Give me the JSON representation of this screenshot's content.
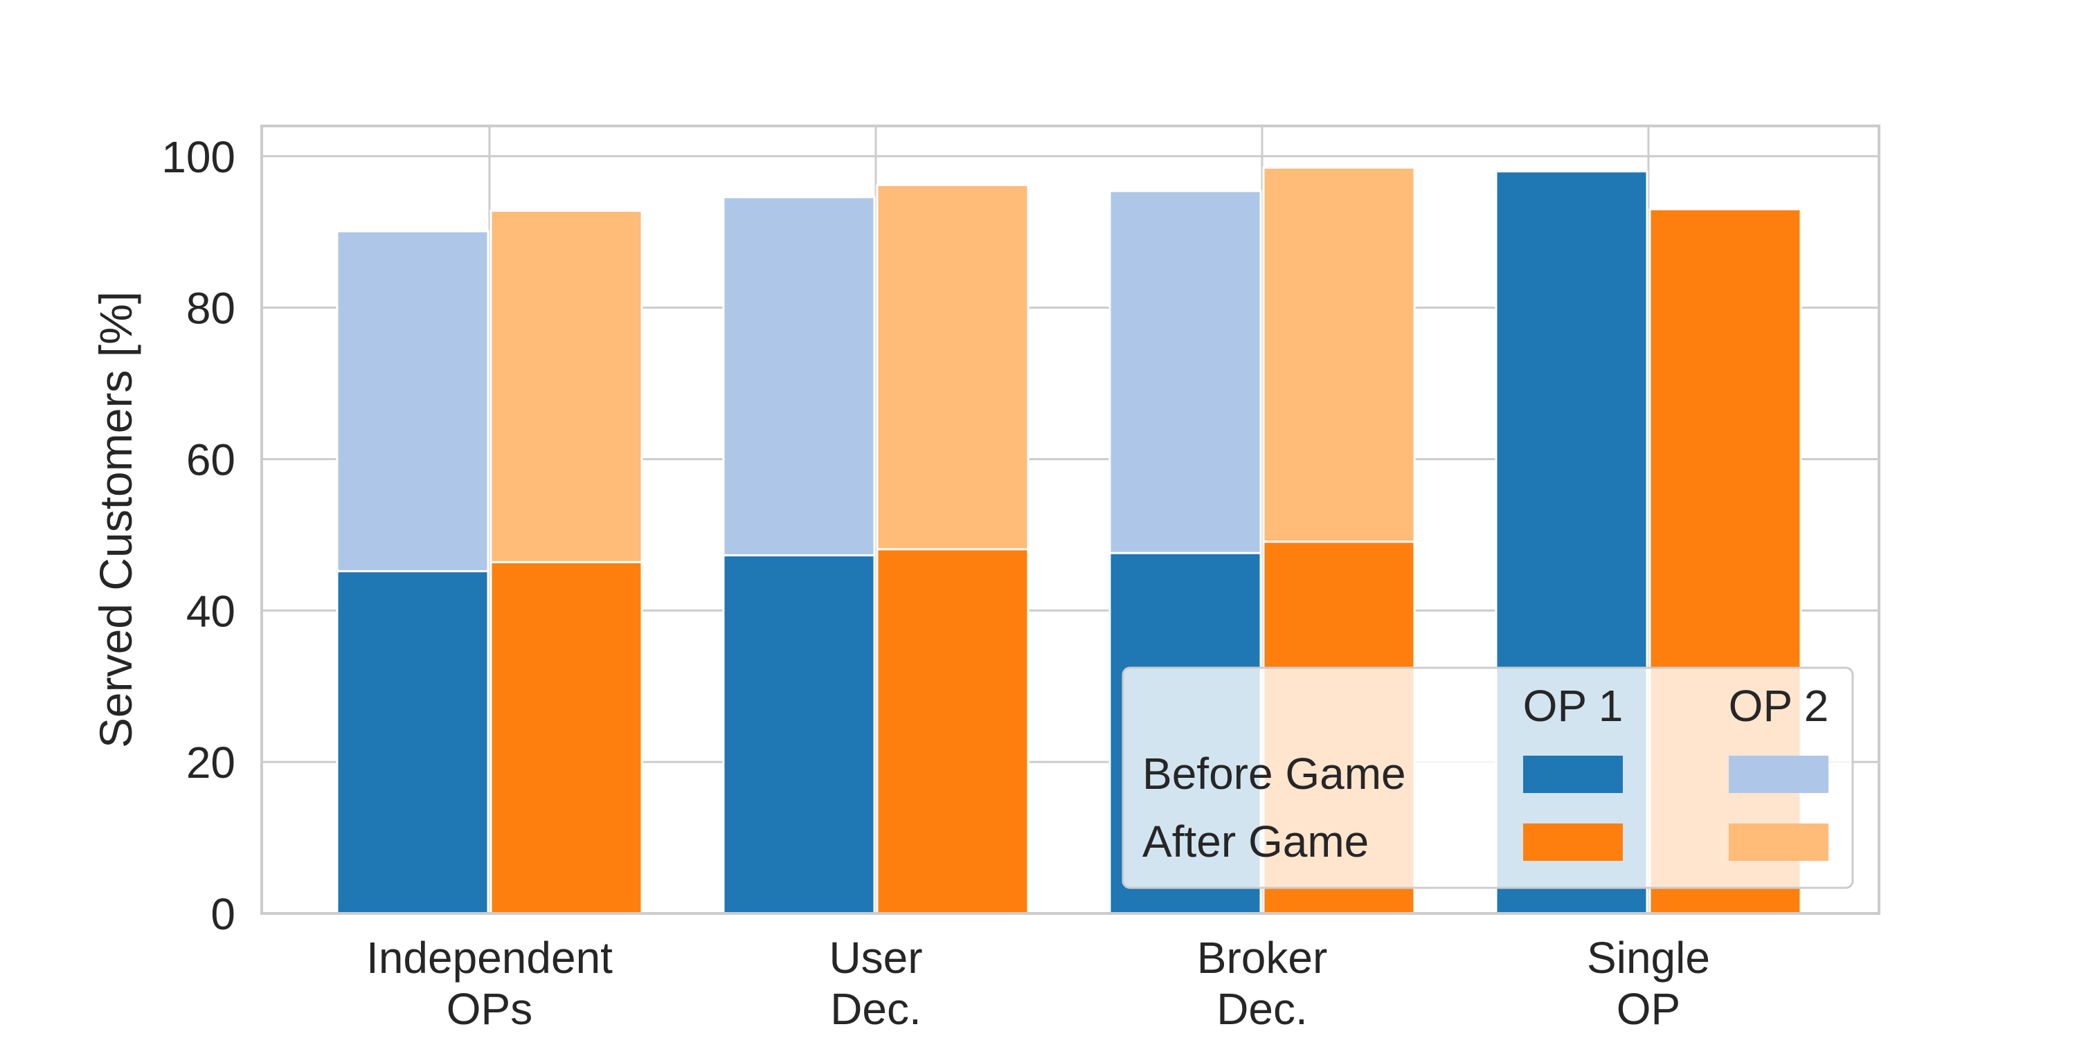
{
  "chart_data": {
    "type": "bar",
    "title": "",
    "xlabel": "",
    "ylabel": "Served Customers [%]",
    "ylim": [
      0,
      104
    ],
    "yticks": [
      0,
      20,
      40,
      60,
      80,
      100
    ],
    "grid": true,
    "categories": [
      [
        "Independent",
        "OPs"
      ],
      [
        "User",
        "Dec."
      ],
      [
        "Broker",
        "Dec."
      ],
      [
        "Single",
        "OP"
      ]
    ],
    "series": [
      {
        "name": "Before Game",
        "stack": [
          {
            "name": "OP 1",
            "color": "#1f77b4",
            "values": [
              45.2,
              47.3,
              47.6,
              98.0
            ]
          },
          {
            "name": "OP 2",
            "color": "#aec7e8",
            "values": [
              44.9,
              47.3,
              47.8,
              0
            ]
          }
        ]
      },
      {
        "name": "After Game",
        "stack": [
          {
            "name": "OP 1",
            "color": "#ff7f0e",
            "values": [
              46.4,
              48.1,
              49.1,
              93.0
            ]
          },
          {
            "name": "OP 2",
            "color": "#ffbb78",
            "values": [
              46.4,
              48.1,
              49.4,
              0
            ]
          }
        ]
      }
    ],
    "legend": {
      "position": "lower-right",
      "columns": [
        "OP 1",
        "OP 2"
      ],
      "rows": [
        "Before Game",
        "After Game"
      ],
      "colors": [
        [
          "#1f77b4",
          "#aec7e8"
        ],
        [
          "#ff7f0e",
          "#ffbb78"
        ]
      ]
    }
  }
}
